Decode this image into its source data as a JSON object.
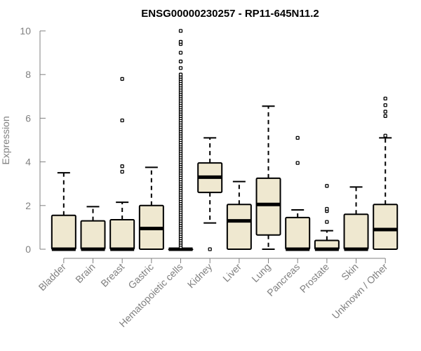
{
  "chart_data": {
    "type": "boxplot",
    "title": "ENSG00000230257 - RP11-645N11.2",
    "xlabel": "",
    "ylabel": "Expression",
    "ylim": [
      0,
      10
    ],
    "yticks": [
      0,
      2,
      4,
      6,
      8,
      10
    ],
    "box_fill": "#efe8d0",
    "categories": [
      "Bladder",
      "Brain",
      "Breast",
      "Gastric",
      "Hematopoietic cells",
      "Kidney",
      "Liver",
      "Lung",
      "Pancreas",
      "Prostate",
      "Skin",
      "Unknown / Other"
    ],
    "boxes": [
      {
        "category": "Bladder",
        "whisker_low": 0,
        "q1": 0,
        "median": 0,
        "q3": 1.55,
        "whisker_high": 3.5,
        "outliers": []
      },
      {
        "category": "Brain",
        "whisker_low": 0,
        "q1": 0,
        "median": 0,
        "q3": 1.3,
        "whisker_high": 1.95,
        "outliers": []
      },
      {
        "category": "Breast",
        "whisker_low": 0,
        "q1": 0,
        "median": 0,
        "q3": 1.35,
        "whisker_high": 2.15,
        "outliers": [
          3.55,
          3.8,
          5.9,
          7.8
        ]
      },
      {
        "category": "Gastric",
        "whisker_low": 0,
        "q1": 0,
        "median": 0.95,
        "q3": 2.0,
        "whisker_high": 3.75,
        "outliers": []
      },
      {
        "category": "Hematopoietic cells",
        "whisker_low": 0,
        "q1": 0,
        "median": 0,
        "q3": 0,
        "whisker_high": 0,
        "outliers": [
          0.1,
          0.2,
          0.3,
          0.4,
          0.5,
          0.6,
          0.7,
          0.8,
          0.9,
          1.0,
          1.1,
          1.2,
          1.3,
          1.4,
          1.5,
          1.6,
          1.7,
          1.8,
          1.9,
          2.0,
          2.1,
          2.2,
          2.3,
          2.4,
          2.5,
          2.6,
          2.7,
          2.8,
          2.9,
          3.0,
          3.1,
          3.2,
          3.3,
          3.4,
          3.5,
          3.6,
          3.7,
          3.8,
          3.9,
          4.0,
          4.1,
          4.2,
          4.3,
          4.4,
          4.5,
          4.6,
          4.7,
          4.8,
          4.9,
          5.0,
          5.1,
          5.2,
          5.3,
          5.4,
          5.5,
          5.6,
          5.7,
          5.8,
          5.9,
          6.0,
          6.1,
          6.2,
          6.3,
          6.4,
          6.5,
          6.6,
          6.7,
          6.8,
          6.9,
          7.0,
          7.1,
          7.2,
          7.3,
          7.4,
          7.5,
          7.6,
          7.7,
          7.8,
          7.9,
          8.0,
          8.3,
          8.6,
          9.0,
          9.4,
          9.5,
          10.0
        ]
      },
      {
        "category": "Kidney",
        "whisker_low": 1.2,
        "q1": 2.6,
        "median": 3.3,
        "q3": 3.95,
        "whisker_high": 5.1,
        "outliers": [
          0
        ]
      },
      {
        "category": "Liver",
        "whisker_low": 0,
        "q1": 0,
        "median": 1.3,
        "q3": 2.05,
        "whisker_high": 3.1,
        "outliers": []
      },
      {
        "category": "Lung",
        "whisker_low": 0,
        "q1": 0.65,
        "median": 2.05,
        "q3": 3.25,
        "whisker_high": 6.55,
        "outliers": []
      },
      {
        "category": "Pancreas",
        "whisker_low": 0,
        "q1": 0,
        "median": 0,
        "q3": 1.45,
        "whisker_high": 1.8,
        "outliers": [
          3.95,
          5.1
        ]
      },
      {
        "category": "Prostate",
        "whisker_low": 0,
        "q1": 0,
        "median": 0,
        "q3": 0.4,
        "whisker_high": 0.85,
        "outliers": [
          1.25,
          1.75,
          1.85,
          2.9
        ]
      },
      {
        "category": "Skin",
        "whisker_low": 0,
        "q1": 0,
        "median": 0,
        "q3": 1.6,
        "whisker_high": 2.85,
        "outliers": []
      },
      {
        "category": "Unknown / Other",
        "whisker_low": 0,
        "q1": 0,
        "median": 0.9,
        "q3": 2.05,
        "whisker_high": 5.1,
        "outliers": [
          5.2,
          6.1,
          6.3,
          6.6,
          6.9
        ]
      }
    ]
  }
}
